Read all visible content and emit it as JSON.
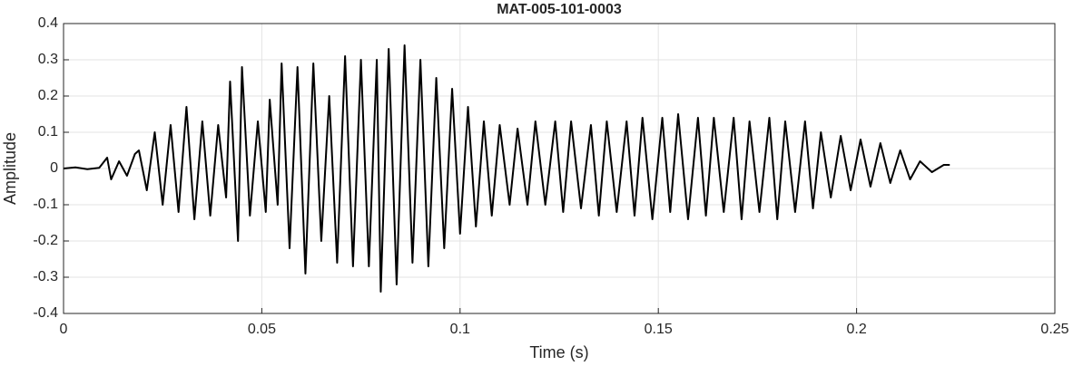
{
  "chart_data": {
    "type": "line",
    "title": "MAT-005-101-0003",
    "xlabel": "Time (s)",
    "ylabel": "Amplitude",
    "xlim": [
      0,
      0.25
    ],
    "xticks": [
      0,
      0.05,
      0.1,
      0.15,
      0.2,
      0.25
    ],
    "ylim": [
      -0.4,
      0.4
    ],
    "yticks": [
      -0.4,
      -0.3,
      -0.2,
      -0.1,
      0,
      0.1,
      0.2,
      0.3,
      0.4
    ],
    "grid": true,
    "color": "#000000",
    "x": [
      0,
      0.003,
      0.006,
      0.009,
      0.011,
      0.012,
      0.014,
      0.016,
      0.018,
      0.019,
      0.021,
      0.023,
      0.025,
      0.027,
      0.029,
      0.031,
      0.033,
      0.035,
      0.037,
      0.039,
      0.041,
      0.042,
      0.044,
      0.045,
      0.047,
      0.049,
      0.051,
      0.052,
      0.054,
      0.055,
      0.057,
      0.059,
      0.061,
      0.063,
      0.065,
      0.067,
      0.069,
      0.071,
      0.073,
      0.075,
      0.077,
      0.079,
      0.08,
      0.082,
      0.084,
      0.086,
      0.088,
      0.09,
      0.092,
      0.094,
      0.096,
      0.098,
      0.1,
      0.102,
      0.104,
      0.106,
      0.108,
      0.11,
      0.1125,
      0.1145,
      0.117,
      0.119,
      0.1215,
      0.124,
      0.126,
      0.128,
      0.1305,
      0.133,
      0.135,
      0.137,
      0.1395,
      0.142,
      0.144,
      0.146,
      0.1485,
      0.151,
      0.153,
      0.155,
      0.1575,
      0.16,
      0.162,
      0.164,
      0.1665,
      0.169,
      0.171,
      0.173,
      0.1755,
      0.178,
      0.18,
      0.182,
      0.1845,
      0.187,
      0.189,
      0.191,
      0.1935,
      0.196,
      0.1985,
      0.201,
      0.2035,
      0.206,
      0.2085,
      0.211,
      0.2135,
      0.216,
      0.219,
      0.222,
      0.2235
    ],
    "values": [
      0,
      0.003,
      -0.002,
      0.002,
      0.03,
      -0.03,
      0.02,
      -0.02,
      0.04,
      0.05,
      -0.06,
      0.1,
      -0.1,
      0.12,
      -0.12,
      0.17,
      -0.14,
      0.13,
      -0.13,
      0.12,
      -0.08,
      0.24,
      -0.2,
      0.28,
      -0.13,
      0.13,
      -0.12,
      0.19,
      -0.1,
      0.29,
      -0.22,
      0.28,
      -0.29,
      0.29,
      -0.2,
      0.2,
      -0.26,
      0.31,
      -0.27,
      0.3,
      -0.27,
      0.3,
      -0.34,
      0.33,
      -0.32,
      0.34,
      -0.26,
      0.3,
      -0.27,
      0.25,
      -0.22,
      0.22,
      -0.18,
      0.17,
      -0.16,
      0.13,
      -0.13,
      0.12,
      -0.1,
      0.11,
      -0.1,
      0.13,
      -0.1,
      0.13,
      -0.12,
      0.13,
      -0.11,
      0.12,
      -0.13,
      0.13,
      -0.12,
      0.13,
      -0.13,
      0.14,
      -0.14,
      0.14,
      -0.12,
      0.15,
      -0.14,
      0.14,
      -0.13,
      0.14,
      -0.12,
      0.14,
      -0.14,
      0.13,
      -0.12,
      0.14,
      -0.14,
      0.13,
      -0.12,
      0.13,
      -0.11,
      0.1,
      -0.08,
      0.09,
      -0.06,
      0.08,
      -0.05,
      0.07,
      -0.04,
      0.05,
      -0.03,
      0.02,
      -0.01,
      0.01,
      0.01
    ]
  }
}
